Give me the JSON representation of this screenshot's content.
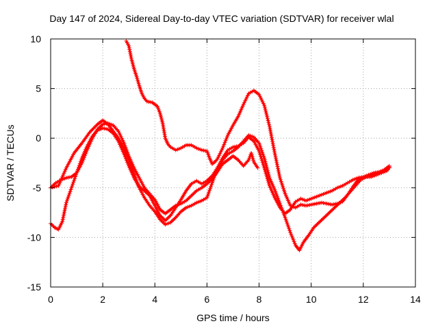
{
  "chart_data": {
    "type": "line",
    "title": "Day 147 of 2024, Sidereal Day-to-day VTEC variation (SDTVAR) for receiver wlal",
    "xlabel": "GPS time / hours",
    "ylabel": "SDTVAR / TECUs",
    "xlim": [
      0,
      14
    ],
    "ylim": [
      -15,
      10
    ],
    "xticks": [
      0,
      2,
      4,
      6,
      8,
      10,
      12,
      14
    ],
    "yticks": [
      -15,
      -10,
      -5,
      0,
      5,
      10
    ],
    "grid": true,
    "marker": "plus",
    "series_color": "#ff0000",
    "series": [
      {
        "name": "trace-1",
        "points": [
          [
            0.0,
            -8.6
          ],
          [
            0.15,
            -9.0
          ],
          [
            0.3,
            -9.2
          ],
          [
            0.45,
            -8.4
          ],
          [
            0.6,
            -6.5
          ],
          [
            0.8,
            -5.0
          ],
          [
            1.0,
            -3.5
          ],
          [
            1.2,
            -2.0
          ],
          [
            1.4,
            -0.8
          ],
          [
            1.6,
            0.2
          ],
          [
            1.8,
            0.8
          ],
          [
            2.0,
            1.0
          ],
          [
            2.2,
            0.9
          ],
          [
            2.4,
            0.5
          ],
          [
            2.6,
            -0.3
          ],
          [
            2.8,
            -1.5
          ],
          [
            3.0,
            -2.8
          ],
          [
            3.2,
            -4.0
          ],
          [
            3.4,
            -4.9
          ],
          [
            3.6,
            -5.3
          ],
          [
            3.8,
            -5.8
          ],
          [
            4.0,
            -6.8
          ],
          [
            4.2,
            -7.8
          ],
          [
            4.4,
            -8.3
          ],
          [
            4.6,
            -7.8
          ],
          [
            4.8,
            -7.0
          ],
          [
            5.0,
            -6.2
          ],
          [
            5.2,
            -5.3
          ],
          [
            5.4,
            -4.6
          ],
          [
            5.6,
            -4.3
          ],
          [
            5.8,
            -4.6
          ],
          [
            6.0,
            -4.3
          ],
          [
            6.2,
            -3.8
          ],
          [
            6.4,
            -3.0
          ],
          [
            6.6,
            -2.2
          ],
          [
            6.8,
            -1.6
          ],
          [
            7.0,
            -1.3
          ],
          [
            7.2,
            -0.9
          ],
          [
            7.4,
            -0.3
          ],
          [
            7.6,
            0.3
          ],
          [
            7.8,
            0.1
          ],
          [
            8.0,
            -0.5
          ],
          [
            8.2,
            -2.0
          ],
          [
            8.4,
            -4.0
          ],
          [
            8.6,
            -5.2
          ],
          [
            8.8,
            -6.6
          ],
          [
            9.0,
            -8.0
          ],
          [
            9.2,
            -9.5
          ],
          [
            9.4,
            -10.8
          ],
          [
            9.55,
            -11.3
          ],
          [
            9.7,
            -10.5
          ],
          [
            9.9,
            -9.8
          ],
          [
            10.1,
            -9.0
          ],
          [
            10.3,
            -8.5
          ],
          [
            10.5,
            -8.0
          ],
          [
            10.7,
            -7.5
          ],
          [
            10.9,
            -7.0
          ],
          [
            11.1,
            -6.5
          ],
          [
            11.3,
            -6.0
          ],
          [
            11.5,
            -5.4
          ],
          [
            11.7,
            -4.8
          ],
          [
            11.9,
            -4.2
          ],
          [
            12.1,
            -3.9
          ],
          [
            12.3,
            -3.9
          ],
          [
            12.5,
            -3.7
          ],
          [
            12.7,
            -3.5
          ],
          [
            12.9,
            -3.3
          ],
          [
            13.0,
            -3.0
          ]
        ]
      },
      {
        "name": "trace-2",
        "points": [
          [
            0.0,
            -5.0
          ],
          [
            0.2,
            -4.5
          ],
          [
            0.4,
            -4.2
          ],
          [
            0.6,
            -4.0
          ],
          [
            0.8,
            -3.9
          ],
          [
            1.0,
            -3.5
          ],
          [
            1.2,
            -2.5
          ],
          [
            1.4,
            -1.2
          ],
          [
            1.6,
            0.0
          ],
          [
            1.8,
            0.9
          ],
          [
            2.0,
            1.4
          ],
          [
            2.2,
            1.5
          ],
          [
            2.4,
            1.3
          ],
          [
            2.6,
            0.7
          ],
          [
            2.8,
            -0.4
          ],
          [
            3.0,
            -1.8
          ],
          [
            3.2,
            -3.0
          ],
          [
            3.4,
            -4.0
          ],
          [
            3.6,
            -5.0
          ],
          [
            3.8,
            -5.6
          ],
          [
            4.0,
            -6.2
          ],
          [
            4.2,
            -7.2
          ],
          [
            4.4,
            -7.6
          ],
          [
            4.6,
            -7.2
          ],
          [
            4.8,
            -6.8
          ],
          [
            5.0,
            -6.6
          ],
          [
            5.2,
            -6.3
          ],
          [
            5.4,
            -5.8
          ],
          [
            5.6,
            -5.3
          ],
          [
            5.8,
            -5.0
          ],
          [
            6.0,
            -4.6
          ],
          [
            6.2,
            -4.1
          ],
          [
            6.4,
            -3.4
          ],
          [
            6.6,
            -2.6
          ],
          [
            6.8,
            -2.2
          ],
          [
            7.0,
            -1.8
          ],
          [
            7.2,
            -2.2
          ],
          [
            7.4,
            -2.8
          ],
          [
            7.6,
            -2.2
          ],
          [
            7.7,
            -1.5
          ],
          [
            7.8,
            -2.4
          ],
          [
            7.95,
            -3.0
          ]
        ]
      },
      {
        "name": "trace-3",
        "points": [
          [
            2.9,
            9.8
          ],
          [
            3.0,
            9.3
          ],
          [
            3.1,
            8.0
          ],
          [
            3.2,
            7.0
          ],
          [
            3.3,
            6.2
          ],
          [
            3.4,
            5.3
          ],
          [
            3.5,
            4.5
          ],
          [
            3.6,
            4.0
          ],
          [
            3.7,
            3.7
          ],
          [
            3.9,
            3.6
          ],
          [
            4.1,
            3.2
          ],
          [
            4.2,
            2.5
          ],
          [
            4.3,
            1.5
          ],
          [
            4.4,
            0.0
          ],
          [
            4.5,
            -0.6
          ],
          [
            4.6,
            -0.9
          ],
          [
            4.8,
            -1.2
          ],
          [
            5.0,
            -1.0
          ],
          [
            5.2,
            -0.7
          ],
          [
            5.4,
            -0.7
          ],
          [
            5.6,
            -1.0
          ],
          [
            5.8,
            -1.2
          ],
          [
            6.0,
            -1.3
          ],
          [
            6.1,
            -2.0
          ],
          [
            6.2,
            -2.6
          ],
          [
            6.3,
            -2.4
          ],
          [
            6.4,
            -2.1
          ],
          [
            6.6,
            -1.0
          ],
          [
            6.8,
            0.3
          ],
          [
            7.0,
            1.3
          ],
          [
            7.2,
            2.2
          ],
          [
            7.4,
            3.4
          ],
          [
            7.6,
            4.5
          ],
          [
            7.8,
            4.8
          ],
          [
            8.0,
            4.4
          ],
          [
            8.2,
            3.3
          ],
          [
            8.4,
            1.2
          ],
          [
            8.6,
            -1.5
          ],
          [
            8.8,
            -4.0
          ],
          [
            9.0,
            -5.6
          ],
          [
            9.2,
            -6.8
          ],
          [
            9.4,
            -7.0
          ],
          [
            9.6,
            -6.7
          ],
          [
            9.8,
            -6.8
          ],
          [
            10.0,
            -6.7
          ],
          [
            10.2,
            -6.6
          ],
          [
            10.4,
            -6.5
          ],
          [
            10.6,
            -6.6
          ],
          [
            10.8,
            -6.7
          ],
          [
            11.0,
            -6.6
          ],
          [
            11.2,
            -6.4
          ],
          [
            11.4,
            -5.7
          ],
          [
            11.6,
            -4.9
          ],
          [
            11.8,
            -4.2
          ],
          [
            12.0,
            -4.0
          ],
          [
            12.2,
            -3.8
          ],
          [
            12.4,
            -3.7
          ],
          [
            12.6,
            -3.5
          ],
          [
            12.8,
            -3.3
          ],
          [
            13.0,
            -2.9
          ]
        ]
      },
      {
        "name": "trace-4",
        "points": [
          [
            0.0,
            -5.0
          ],
          [
            0.3,
            -4.8
          ],
          [
            0.6,
            -3.0
          ],
          [
            0.9,
            -1.5
          ],
          [
            1.2,
            -0.5
          ],
          [
            1.5,
            0.6
          ],
          [
            1.8,
            1.4
          ],
          [
            2.0,
            1.8
          ],
          [
            2.2,
            1.4
          ],
          [
            2.4,
            0.7
          ],
          [
            2.6,
            0.0
          ],
          [
            2.8,
            -1.0
          ],
          [
            3.0,
            -2.2
          ],
          [
            3.2,
            -3.6
          ],
          [
            3.4,
            -5.0
          ],
          [
            3.6,
            -6.0
          ],
          [
            3.8,
            -6.8
          ],
          [
            4.0,
            -7.4
          ],
          [
            4.2,
            -8.2
          ],
          [
            4.4,
            -8.7
          ],
          [
            4.6,
            -8.5
          ],
          [
            4.8,
            -8.0
          ],
          [
            5.0,
            -7.4
          ],
          [
            5.2,
            -7.0
          ],
          [
            5.4,
            -6.8
          ],
          [
            5.6,
            -6.5
          ],
          [
            5.8,
            -6.3
          ],
          [
            6.0,
            -6.0
          ],
          [
            6.2,
            -4.5
          ],
          [
            6.4,
            -3.0
          ],
          [
            6.6,
            -2.0
          ],
          [
            6.8,
            -1.2
          ],
          [
            7.0,
            -0.9
          ],
          [
            7.2,
            -0.8
          ],
          [
            7.4,
            -0.5
          ],
          [
            7.6,
            0.1
          ],
          [
            7.8,
            -0.3
          ],
          [
            8.0,
            -1.3
          ],
          [
            8.2,
            -3.0
          ],
          [
            8.4,
            -4.8
          ],
          [
            8.6,
            -6.0
          ],
          [
            8.8,
            -7.0
          ],
          [
            9.0,
            -7.6
          ],
          [
            9.2,
            -7.2
          ],
          [
            9.4,
            -6.4
          ],
          [
            9.6,
            -6.1
          ],
          [
            9.8,
            -6.3
          ],
          [
            10.0,
            -6.1
          ],
          [
            10.2,
            -5.9
          ],
          [
            10.4,
            -5.7
          ],
          [
            10.6,
            -5.5
          ],
          [
            10.8,
            -5.3
          ],
          [
            11.0,
            -5.0
          ],
          [
            11.2,
            -4.8
          ],
          [
            11.4,
            -4.5
          ],
          [
            11.6,
            -4.2
          ],
          [
            11.8,
            -4.0
          ],
          [
            12.0,
            -3.9
          ],
          [
            12.2,
            -3.7
          ],
          [
            12.4,
            -3.5
          ],
          [
            12.6,
            -3.4
          ],
          [
            12.8,
            -3.2
          ],
          [
            13.0,
            -2.8
          ]
        ]
      }
    ]
  }
}
